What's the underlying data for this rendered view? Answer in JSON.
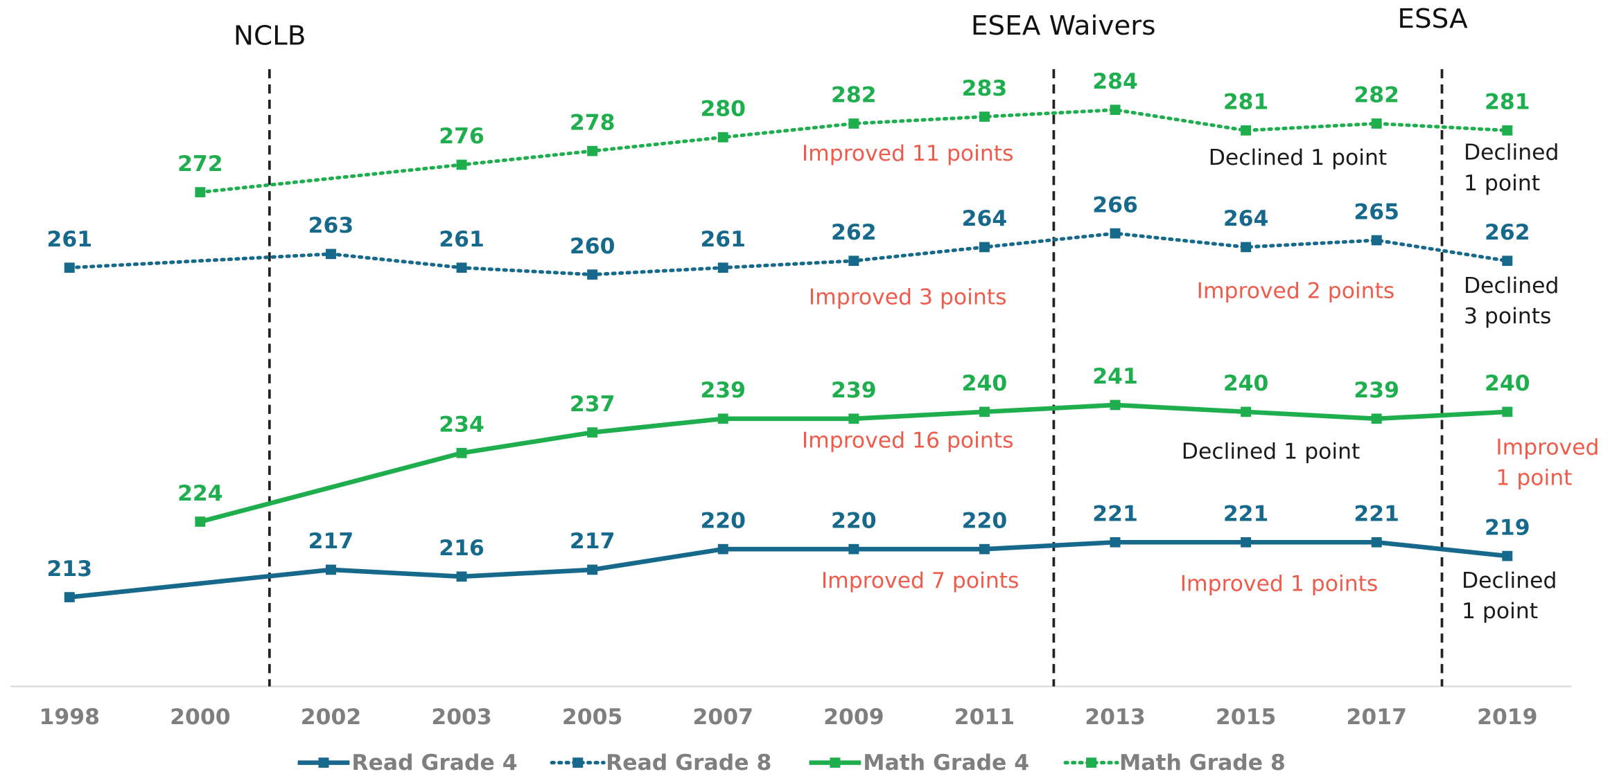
{
  "chart_data": {
    "type": "line",
    "categories": [
      "1998",
      "2000",
      "2002",
      "2003",
      "2005",
      "2007",
      "2009",
      "2011",
      "2013",
      "2015",
      "2017",
      "2019"
    ],
    "series": [
      {
        "name": "Read Grade 4",
        "color": "#17698c",
        "line_style": "solid",
        "values": [
          213,
          null,
          217,
          216,
          217,
          220,
          220,
          220,
          221,
          221,
          221,
          219
        ]
      },
      {
        "name": "Read Grade 8",
        "color": "#17698c",
        "line_style": "dotted",
        "values": [
          261,
          null,
          263,
          261,
          260,
          261,
          262,
          264,
          266,
          264,
          265,
          262
        ]
      },
      {
        "name": "Math Grade 4",
        "color": "#1fae4e",
        "line_style": "solid",
        "values": [
          null,
          224,
          null,
          234,
          237,
          239,
          239,
          240,
          241,
          240,
          239,
          240
        ]
      },
      {
        "name": "Math Grade 8",
        "color": "#1fae4e",
        "line_style": "dotted",
        "values": [
          null,
          272,
          null,
          276,
          278,
          280,
          282,
          283,
          284,
          281,
          282,
          281
        ]
      }
    ],
    "ylim": [
      200,
      300
    ],
    "events": [
      "NCLB",
      "ESEA Waivers",
      "ESSA"
    ],
    "annotations": [
      {
        "lines": [
          "Improved 11 points"
        ],
        "color": "#ef5b4b"
      },
      {
        "lines": [
          "Declined 1 point"
        ],
        "color": "#1a1a1a"
      },
      {
        "lines": [
          "Declined",
          "1 point"
        ],
        "color": "#1a1a1a"
      },
      {
        "lines": [
          "Improved 3 points"
        ],
        "color": "#ef5b4b"
      },
      {
        "lines": [
          "Improved 2 points"
        ],
        "color": "#ef5b4b"
      },
      {
        "lines": [
          "Declined",
          "3 points"
        ],
        "color": "#1a1a1a"
      },
      {
        "lines": [
          "Improved 16 points"
        ],
        "color": "#ef5b4b"
      },
      {
        "lines": [
          "Declined 1 point"
        ],
        "color": "#1a1a1a"
      },
      {
        "lines": [
          "Improved",
          "1 point"
        ],
        "color": "#ef5b4b"
      },
      {
        "lines": [
          "Improved 7 points"
        ],
        "color": "#ef5b4b"
      },
      {
        "lines": [
          "Improved 1 points"
        ],
        "color": "#ef5b4b"
      },
      {
        "lines": [
          "Declined",
          "1 point"
        ],
        "color": "#1a1a1a"
      }
    ],
    "legend": "bottom"
  }
}
